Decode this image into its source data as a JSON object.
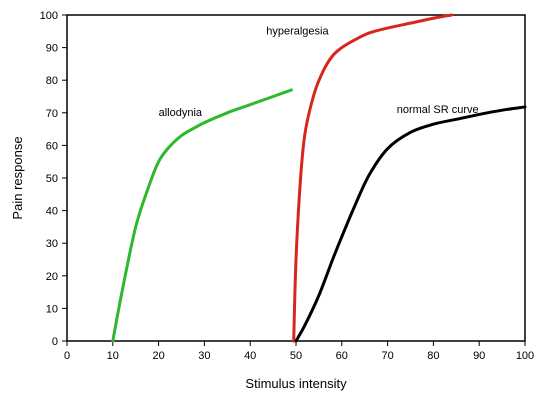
{
  "chart_data": {
    "type": "line",
    "xlabel": "Stimulus intensity",
    "ylabel": "Pain response",
    "xlim": [
      0,
      100
    ],
    "ylim": [
      0,
      100
    ],
    "xticks": [
      0,
      10,
      20,
      30,
      40,
      50,
      60,
      70,
      80,
      90,
      100
    ],
    "yticks": [
      0,
      10,
      20,
      30,
      40,
      50,
      60,
      70,
      80,
      90,
      100
    ],
    "grid": false,
    "series": [
      {
        "name": "allodynia",
        "color": "#2db82d",
        "x": [
          10,
          12,
          15,
          18,
          20,
          22,
          25,
          28,
          30,
          35,
          40,
          45,
          49
        ],
        "y": [
          0,
          15,
          35,
          48,
          55,
          59,
          63,
          65.5,
          67,
          70,
          72.5,
          75,
          77
        ]
      },
      {
        "name": "hyperalgesia",
        "color": "#d9261c",
        "x": [
          49.5,
          50,
          51,
          52,
          54,
          56,
          58,
          60,
          63,
          66,
          70,
          75,
          80,
          84
        ],
        "y": [
          0,
          25,
          50,
          64,
          76,
          83,
          87.5,
          90,
          92.5,
          94.5,
          96,
          97.5,
          99,
          100
        ]
      },
      {
        "name": "normal SR curve",
        "color": "#000000",
        "x": [
          50,
          52,
          55,
          58,
          60,
          63,
          66,
          70,
          75,
          80,
          85,
          90,
          95,
          100
        ],
        "y": [
          0,
          5,
          14,
          25,
          32,
          42,
          51,
          59,
          64,
          66.5,
          68,
          69.5,
          70.8,
          71.8
        ]
      }
    ],
    "annotations": [
      {
        "text": "allodynia",
        "x": 20,
        "y": 69
      },
      {
        "text": "hyperalgesia",
        "x": 43.5,
        "y": 94
      },
      {
        "text": "normal SR curve",
        "x": 72,
        "y": 70
      }
    ]
  }
}
